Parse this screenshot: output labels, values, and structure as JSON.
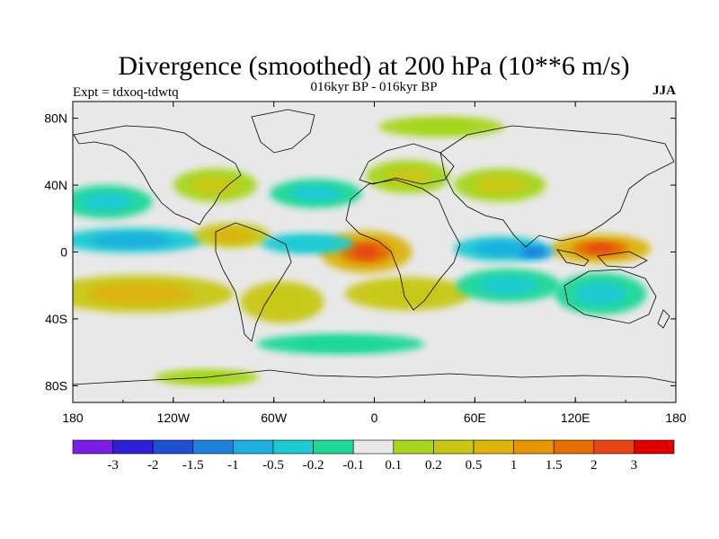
{
  "chart_data": {
    "type": "heatmap",
    "title": "Divergence (smoothed) at 200 hPa (10**6 m/s)",
    "subtitle": "016kyr BP - 016kyr BP",
    "left_label": "Expt = tdxoq-tdwtq",
    "right_label": "JJA",
    "x_ticks": [
      "180",
      "120W",
      "60W",
      "0",
      "60E",
      "120E",
      "180"
    ],
    "x_tick_values": [
      -180,
      -120,
      -60,
      0,
      60,
      120,
      180
    ],
    "y_ticks": [
      "80N",
      "40N",
      "0",
      "40S",
      "80S"
    ],
    "y_tick_values": [
      80,
      40,
      0,
      -40,
      -80
    ],
    "xlim": [
      -180,
      180
    ],
    "ylim": [
      -90,
      90
    ],
    "colorbar": {
      "colors": [
        "#7a1ee6",
        "#2d1ed8",
        "#1e50d2",
        "#1e82dc",
        "#1eaee0",
        "#1ccad2",
        "#1ed896",
        "#e8e8e8",
        "#a6d61e",
        "#c8c814",
        "#dcb40a",
        "#e69600",
        "#e66e00",
        "#e64614",
        "#e00000"
      ],
      "labels": [
        "-3",
        "-2",
        "-1.5",
        "-1",
        "-0.5",
        "-0.2",
        "-0.1",
        "0.1",
        "0.2",
        "0.5",
        "1",
        "1.5",
        "2",
        "3"
      ]
    },
    "regions": [
      {
        "name": "central-africa-strong-positive",
        "lon": -5,
        "lat": 0,
        "rx": 22,
        "ry": 10,
        "value": 2.5
      },
      {
        "name": "maritime-continent-strong-positive",
        "lon": 135,
        "lat": 2,
        "rx": 24,
        "ry": 7,
        "value": 2.2
      },
      {
        "name": "equatorial-pacific-negative",
        "lon": -145,
        "lat": 7,
        "rx": 35,
        "ry": 6,
        "value": -1.2
      },
      {
        "name": "central-america-positive",
        "lon": -85,
        "lat": 10,
        "rx": 18,
        "ry": 6,
        "value": 0.8
      },
      {
        "name": "atlantic-itcz-negative",
        "lon": -40,
        "lat": 5,
        "rx": 22,
        "ry": 5,
        "value": -0.6
      },
      {
        "name": "indian-ocean-negative",
        "lon": 75,
        "lat": 2,
        "rx": 22,
        "ry": 6,
        "value": -1.0
      },
      {
        "name": "bay-of-bengal-negative",
        "lon": 95,
        "lat": 0,
        "rx": 10,
        "ry": 4,
        "value": -1.5
      },
      {
        "name": "south-pacific-positive-band",
        "lon": -140,
        "lat": -25,
        "rx": 45,
        "ry": 9,
        "value": 0.9
      },
      {
        "name": "south-america-positive",
        "lon": -55,
        "lat": -30,
        "rx": 20,
        "ry": 10,
        "value": 0.7
      },
      {
        "name": "south-atlantic-positive",
        "lon": 20,
        "lat": -25,
        "rx": 30,
        "ry": 8,
        "value": 0.6
      },
      {
        "name": "south-indian-negative",
        "lon": 80,
        "lat": -20,
        "rx": 25,
        "ry": 8,
        "value": -0.4
      },
      {
        "name": "australia-negative",
        "lon": 135,
        "lat": -25,
        "rx": 22,
        "ry": 10,
        "value": -0.5
      },
      {
        "name": "north-pacific-negative",
        "lon": -160,
        "lat": 30,
        "rx": 22,
        "ry": 8,
        "value": -0.4
      },
      {
        "name": "north-america-positive",
        "lon": -95,
        "lat": 40,
        "rx": 20,
        "ry": 8,
        "value": 0.4
      },
      {
        "name": "north-atlantic-negative",
        "lon": -35,
        "lat": 35,
        "rx": 22,
        "ry": 7,
        "value": -0.3
      },
      {
        "name": "europe-positive",
        "lon": 20,
        "lat": 45,
        "rx": 20,
        "ry": 8,
        "value": 0.5
      },
      {
        "name": "central-asia-positive",
        "lon": 75,
        "lat": 40,
        "rx": 22,
        "ry": 8,
        "value": 0.4
      },
      {
        "name": "arctic-positive",
        "lon": 40,
        "lat": 75,
        "rx": 30,
        "ry": 5,
        "value": 0.2
      },
      {
        "name": "southern-ocean-negative",
        "lon": -20,
        "lat": -55,
        "rx": 40,
        "ry": 5,
        "value": -0.2
      },
      {
        "name": "antarctic-positive",
        "lon": -100,
        "lat": -75,
        "rx": 25,
        "ry": 4,
        "value": 0.2
      }
    ]
  }
}
